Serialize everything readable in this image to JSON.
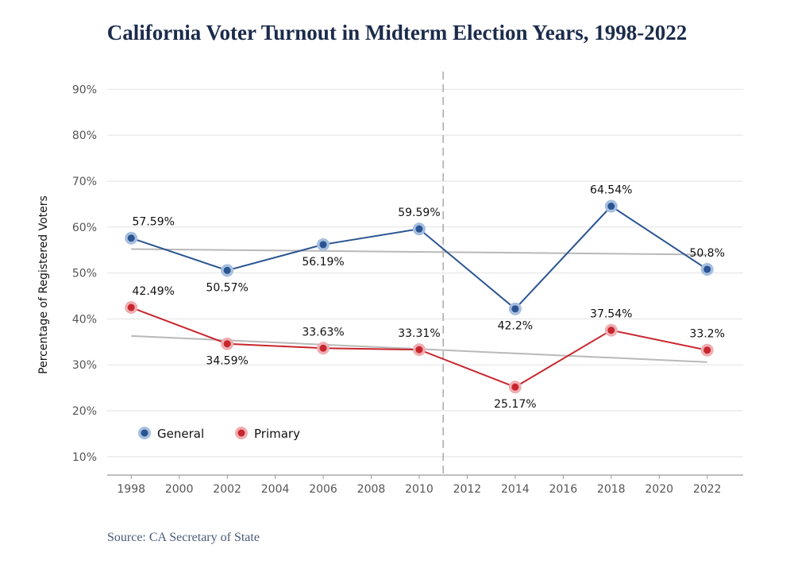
{
  "chart_data": {
    "type": "line",
    "title": "California Voter Turnout in Midterm Election Years, 1998-2022",
    "xlabel": "",
    "ylabel": "Percentage of Registered Voters",
    "x_ticks": [
      1998,
      2000,
      2002,
      2004,
      2006,
      2008,
      2010,
      2012,
      2014,
      2016,
      2018,
      2020,
      2022
    ],
    "y_ticks": [
      10,
      20,
      30,
      40,
      50,
      60,
      70,
      80,
      90
    ],
    "y_tick_suffix": "%",
    "xlim": [
      1997,
      2023.5
    ],
    "ylim": [
      6,
      93
    ],
    "grid": true,
    "divider_x": 2011,
    "legend_position": "lower-left",
    "series": [
      {
        "name": "General",
        "color": "#2a5592",
        "halo_color": "#a6bfdf",
        "x": [
          1998,
          2002,
          2006,
          2010,
          2014,
          2018,
          2022
        ],
        "values": [
          57.59,
          50.57,
          56.19,
          59.59,
          42.2,
          64.54,
          50.8
        ],
        "labels": [
          "57.59%",
          "50.57%",
          "56.19%",
          "59.59%",
          "42.2%",
          "64.54%",
          "50.8%"
        ],
        "label_positions": [
          "above",
          "below",
          "below",
          "above",
          "below",
          "above",
          "above"
        ],
        "trend": [
          55.2,
          54.0
        ]
      },
      {
        "name": "Primary",
        "color": "#c8262e",
        "halo_color": "#efaeb2",
        "x": [
          1998,
          2002,
          2006,
          2010,
          2014,
          2018,
          2022
        ],
        "values": [
          42.49,
          34.59,
          33.63,
          33.31,
          25.17,
          37.54,
          33.2
        ],
        "labels": [
          "42.49%",
          "34.59%",
          "33.63%",
          "33.31%",
          "25.17%",
          "37.54%",
          "33.2%"
        ],
        "label_positions": [
          "above",
          "below",
          "above",
          "above",
          "below",
          "above",
          "above"
        ],
        "trend": [
          36.3,
          30.6
        ]
      }
    ]
  },
  "source": "Source: CA Secretary of State"
}
